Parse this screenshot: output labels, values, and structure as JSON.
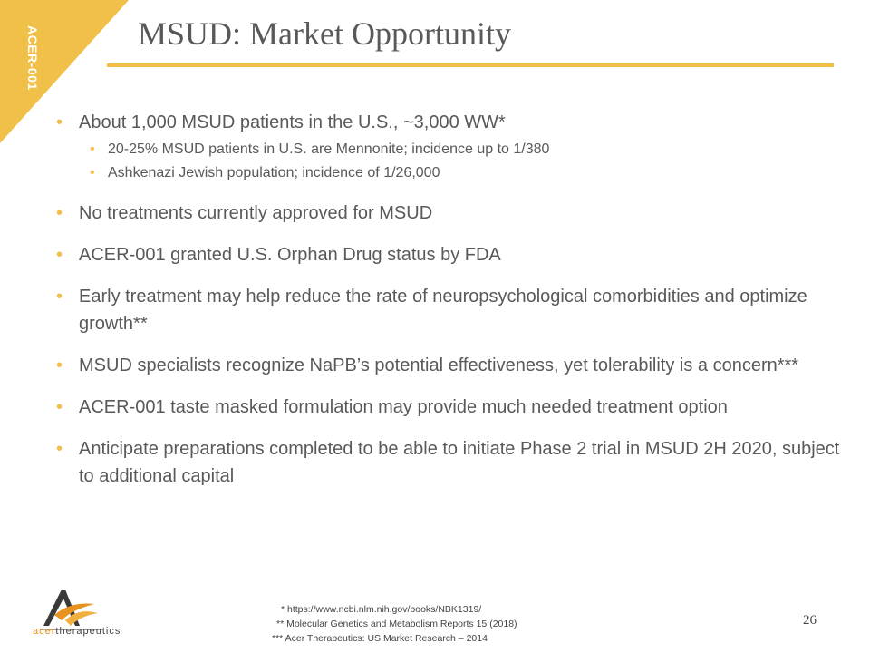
{
  "corner_label": "ACER-001",
  "title": "MSUD: Market Opportunity",
  "bullets": [
    {
      "text": "About 1,000 MSUD patients in the U.S., ~3,000 WW*",
      "sub": [
        "20-25% MSUD patients in U.S. are Mennonite; incidence up to 1/380",
        "Ashkenazi Jewish population; incidence of 1/26,000"
      ]
    },
    {
      "text": "No treatments currently approved for MSUD"
    },
    {
      "text": "ACER-001 granted U.S. Orphan Drug status by FDA"
    },
    {
      "text": "Early treatment may help reduce the rate of neuropsychological comorbidities and optimize growth**"
    },
    {
      "text": "MSUD specialists recognize NaPB’s potential effectiveness, yet tolerability is a concern***"
    },
    {
      "text": "ACER-001 taste masked formulation may provide much needed treatment option"
    },
    {
      "text": "Anticipate preparations completed to be able to initiate Phase 2 trial in MSUD 2H 2020, subject to additional capital"
    }
  ],
  "logo": {
    "name_part1": "acer",
    "name_part2": "therapeutics"
  },
  "references": [
    "* https://www.ncbi.nlm.nih.gov/books/NBK1319/",
    "** Molecular Genetics and Metabolism Reports 15 (2018)",
    "*** Acer Therapeutics: US Market Research – 2014"
  ],
  "page_number": "26",
  "colors": {
    "accent": "#f0c048",
    "text": "#595959",
    "logo_orange": "#e8921f"
  }
}
